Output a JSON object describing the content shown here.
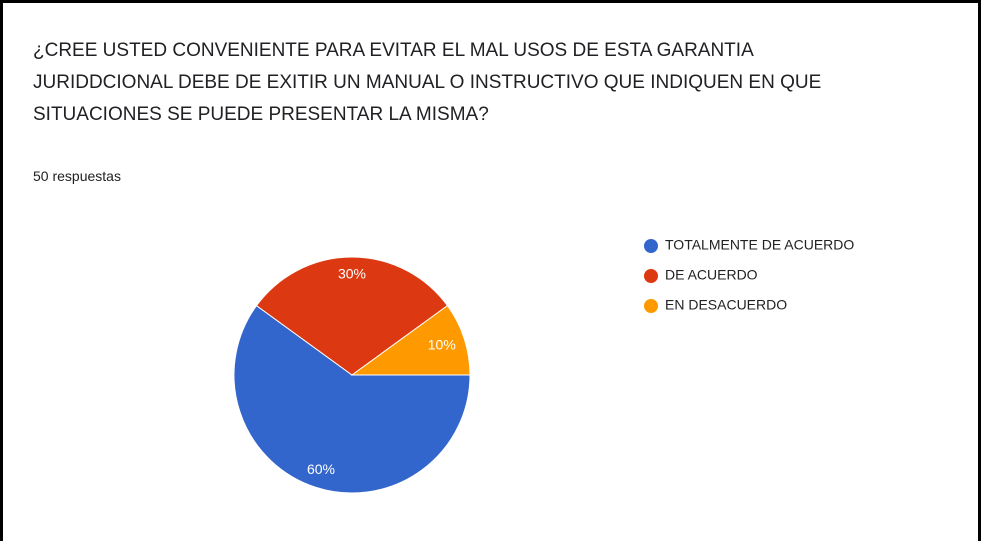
{
  "chart_data": {
    "type": "pie",
    "title": "¿CREE USTED CONVENIENTE PARA EVITAR EL MAL USOS DE ESTA GARANTIA JURIDDCIONAL DEBE DE EXITIR UN MANUAL O INSTRUCTIVO QUE INDIQUEN EN QUE SITUACIONES SE PUEDE PRESENTAR LA MISMA?",
    "subtitle": "50 respuestas",
    "categories": [
      "TOTALMENTE DE ACUERDO",
      "DE ACUERDO",
      "EN DESACUERDO"
    ],
    "values": [
      60,
      30,
      10
    ],
    "value_labels": [
      "60%",
      "30%",
      "10%"
    ],
    "colors": [
      "#3366cc",
      "#dc3912",
      "#ff9900"
    ],
    "legend": "right"
  }
}
